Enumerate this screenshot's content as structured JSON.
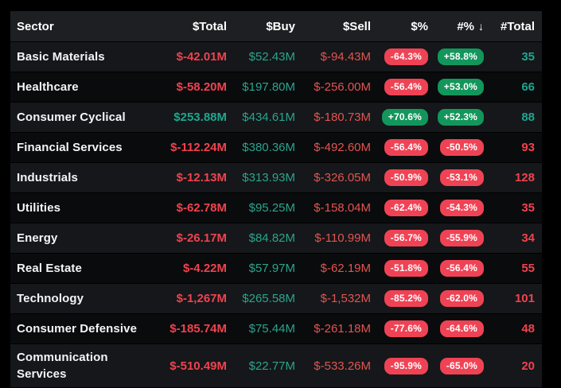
{
  "table": {
    "columns": [
      {
        "label": "Sector"
      },
      {
        "label": "$Total"
      },
      {
        "label": "$Buy"
      },
      {
        "label": "$Sell"
      },
      {
        "label": "$%"
      },
      {
        "label": "#%",
        "sorted": "desc"
      },
      {
        "label": "#Total"
      }
    ],
    "sort": {
      "column": "#%",
      "direction": "desc",
      "icon": "↓"
    },
    "rows": [
      {
        "sector": "Basic Materials",
        "total": "$-42.01M",
        "buy": "$52.43M",
        "sell": "$-94.43M",
        "dollar_pct": "-64.3%",
        "count_pct": "+58.8%",
        "count_total": "35"
      },
      {
        "sector": "Healthcare",
        "total": "$-58.20M",
        "buy": "$197.80M",
        "sell": "$-256.00M",
        "dollar_pct": "-56.4%",
        "count_pct": "+53.0%",
        "count_total": "66"
      },
      {
        "sector": "Consumer Cyclical",
        "total": "$253.88M",
        "buy": "$434.61M",
        "sell": "$-180.73M",
        "dollar_pct": "+70.6%",
        "count_pct": "+52.3%",
        "count_total": "88"
      },
      {
        "sector": "Financial Services",
        "total": "$-112.24M",
        "buy": "$380.36M",
        "sell": "$-492.60M",
        "dollar_pct": "-56.4%",
        "count_pct": "-50.5%",
        "count_total": "93"
      },
      {
        "sector": "Industrials",
        "total": "$-12.13M",
        "buy": "$313.93M",
        "sell": "$-326.05M",
        "dollar_pct": "-50.9%",
        "count_pct": "-53.1%",
        "count_total": "128"
      },
      {
        "sector": "Utilities",
        "total": "$-62.78M",
        "buy": "$95.25M",
        "sell": "$-158.04M",
        "dollar_pct": "-62.4%",
        "count_pct": "-54.3%",
        "count_total": "35"
      },
      {
        "sector": "Energy",
        "total": "$-26.17M",
        "buy": "$84.82M",
        "sell": "$-110.99M",
        "dollar_pct": "-56.7%",
        "count_pct": "-55.9%",
        "count_total": "34"
      },
      {
        "sector": "Real Estate",
        "total": "$-4.22M",
        "buy": "$57.97M",
        "sell": "$-62.19M",
        "dollar_pct": "-51.8%",
        "count_pct": "-56.4%",
        "count_total": "55"
      },
      {
        "sector": "Technology",
        "total": "$-1,267M",
        "buy": "$265.58M",
        "sell": "$-1,532M",
        "dollar_pct": "-85.2%",
        "count_pct": "-62.0%",
        "count_total": "101"
      },
      {
        "sector": "Consumer Defensive",
        "total": "$-185.74M",
        "buy": "$75.44M",
        "sell": "$-261.18M",
        "dollar_pct": "-77.6%",
        "count_pct": "-64.6%",
        "count_total": "48"
      },
      {
        "sector": "Communication Services",
        "total": "$-510.49M",
        "buy": "$22.77M",
        "sell": "$-533.26M",
        "dollar_pct": "-95.9%",
        "count_pct": "-65.0%",
        "count_total": "20"
      }
    ]
  },
  "colors": {
    "page_background": "#000000",
    "header_background": "#1d1f22",
    "row_even_background": "#15171a",
    "row_odd_background": "#0a0b0d",
    "text_white": "#f4f5f6",
    "negative_text": "#f0424e",
    "sell_negative_text": "#e05550",
    "positive_text": "#1da78d",
    "buy_positive_text": "#2ba48c",
    "badge_negative_background": "#ef4355",
    "badge_positive_background": "#13965c"
  }
}
